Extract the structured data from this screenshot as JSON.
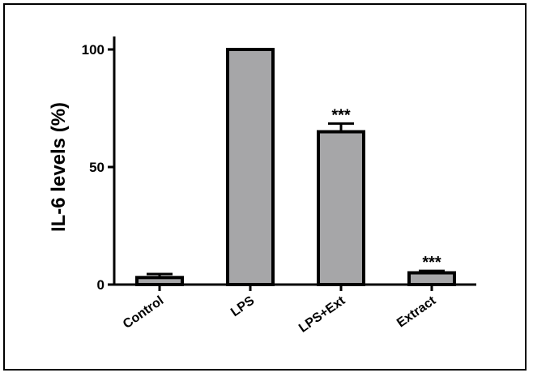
{
  "chart_data": {
    "type": "bar",
    "categories": [
      "Control",
      "LPS",
      "LPS+Ext",
      "Extract"
    ],
    "values": [
      3,
      100,
      65,
      5
    ],
    "errors": [
      1.5,
      0,
      3.5,
      0.8
    ],
    "annotations": [
      "",
      "",
      "***",
      "***"
    ],
    "title": "",
    "xlabel": "",
    "ylabel": "IL-6 levels (%)",
    "ylim": [
      0,
      100
    ],
    "yticks": [
      0,
      50,
      100
    ],
    "grid": false,
    "bar_color": "#a6a6a8",
    "edge_color": "#000000"
  }
}
